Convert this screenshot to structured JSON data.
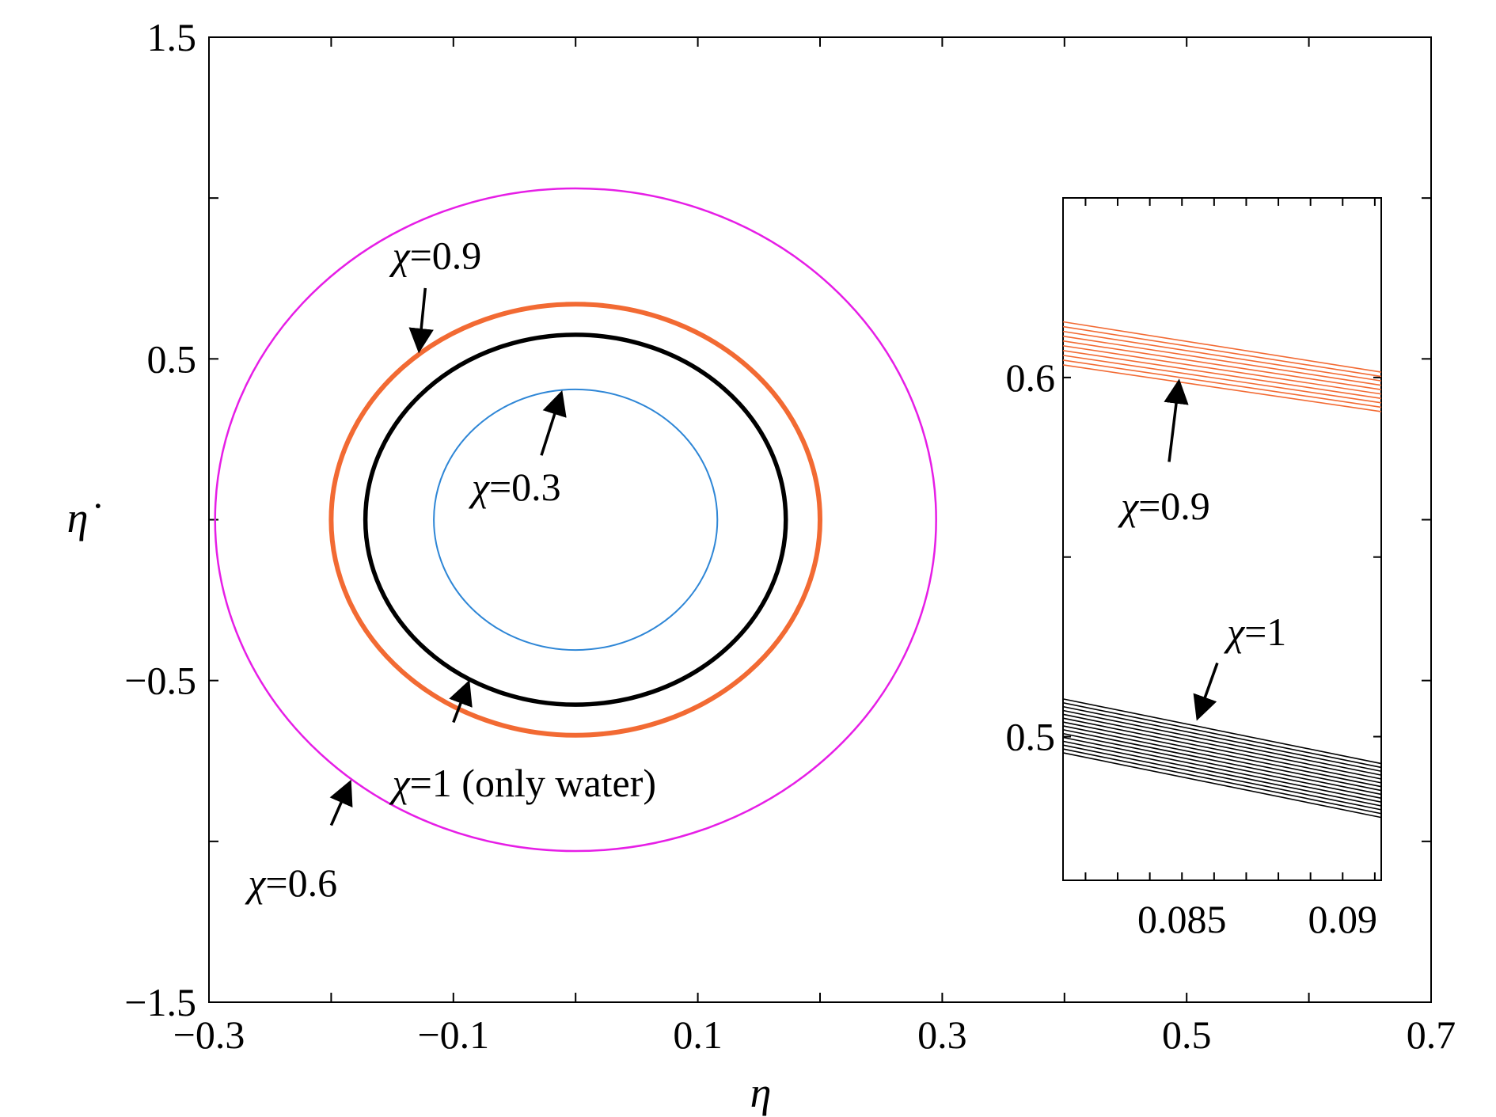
{
  "chart_data": [
    {
      "type": "line",
      "title": "",
      "xlabel": "η",
      "ylabel": "η̇",
      "xlim": [
        -0.3,
        0.7
      ],
      "ylim": [
        -1.5,
        1.5
      ],
      "x_ticks": [
        -0.3,
        -0.2,
        -0.1,
        0.0,
        0.1,
        0.2,
        0.3,
        0.4,
        0.5,
        0.6,
        0.7
      ],
      "x_tick_labels": [
        "−0.3",
        "−0.1",
        "0.1",
        "0.3",
        "0.5",
        "0.7"
      ],
      "x_tick_label_values": [
        -0.3,
        -0.1,
        0.1,
        0.3,
        0.5,
        0.7
      ],
      "y_ticks": [
        -1.5,
        -1.0,
        -0.5,
        0.0,
        0.5,
        1.0,
        1.5
      ],
      "y_tick_labels": [
        "−1.5",
        "−0.5",
        "0.5",
        "1.5"
      ],
      "y_tick_label_values": [
        -1.5,
        -0.5,
        0.5,
        1.5
      ],
      "grid": false,
      "series": [
        {
          "label": "χ=0.6",
          "color": "#e61ee6",
          "center": [
            0.0,
            0.0
          ],
          "radius_x": 0.295,
          "radius_y": 1.03
        },
        {
          "label": "χ=0.9",
          "color": "#f26a33",
          "center": [
            0.0,
            0.0
          ],
          "radius_x": 0.2,
          "radius_y": 0.67
        },
        {
          "label": "χ=1",
          "color": "#000000",
          "center": [
            0.0,
            0.0
          ],
          "radius_x": 0.172,
          "radius_y": 0.575
        },
        {
          "label": "χ=0.3",
          "color": "#2e86d6",
          "center": [
            0.0,
            0.0
          ],
          "radius_x": 0.116,
          "radius_y": 0.405
        }
      ],
      "annotations": [
        {
          "prefix": "χ",
          "text": "=0.9",
          "tip": [
            -0.128,
            0.53
          ],
          "tail": [
            -0.123,
            0.72
          ],
          "label_at": [
            -0.15,
            0.78
          ]
        },
        {
          "prefix": "χ",
          "text": "=0.3",
          "tip": [
            -0.012,
            0.39
          ],
          "tail": [
            -0.028,
            0.2
          ],
          "label_at": [
            -0.085,
            0.06
          ]
        },
        {
          "prefix": "χ",
          "text": "=1 (only water)",
          "tip": [
            -0.088,
            -0.51
          ],
          "tail": [
            -0.1,
            -0.63
          ],
          "label_at": [
            -0.15,
            -0.86
          ]
        },
        {
          "prefix": "χ",
          "text": "=0.6",
          "tip": [
            -0.185,
            -0.82
          ],
          "tail": [
            -0.2,
            -0.95
          ],
          "label_at": [
            -0.268,
            -1.17
          ]
        }
      ]
    },
    {
      "type": "line",
      "title": "",
      "xlabel": "",
      "ylabel": "",
      "xlim": [
        0.0813,
        0.0912
      ],
      "ylim": [
        0.46,
        0.65
      ],
      "x_ticks": [
        0.082,
        0.083,
        0.084,
        0.085,
        0.086,
        0.087,
        0.088,
        0.089,
        0.09,
        0.091
      ],
      "x_tick_labels": [
        "0.085",
        "0.09"
      ],
      "x_tick_label_values": [
        0.085,
        0.09
      ],
      "y_ticks": [
        0.5,
        0.6
      ],
      "y_minor_ticks": [
        0.55
      ],
      "y_tick_labels": [
        "0.5",
        "0.6"
      ],
      "y_tick_label_values": [
        0.5,
        0.6
      ],
      "grid": false,
      "series": [
        {
          "label": "χ=0.9",
          "color": "#f26a33",
          "x": [
            0.0813,
            0.0912
          ],
          "band_start": [
            0.6035,
            0.6155
          ],
          "band_end": [
            0.5905,
            0.6015
          ],
          "count": 10
        },
        {
          "label": "χ=1",
          "color": "#000000",
          "x": [
            0.0813,
            0.0912
          ],
          "band_start": [
            0.4955,
            0.5105
          ],
          "band_end": [
            0.4775,
            0.4925
          ],
          "count": 15
        }
      ],
      "annotations": [
        {
          "prefix": "χ",
          "text": "=0.9",
          "tip": [
            0.0849,
            0.5985
          ],
          "tail": [
            0.0846,
            0.5765
          ],
          "label_at": [
            0.0831,
            0.5605
          ]
        },
        {
          "prefix": "χ",
          "text": "=1",
          "tip": [
            0.0855,
            0.5055
          ],
          "tail": [
            0.0861,
            0.5205
          ],
          "label_at": [
            0.0864,
            0.5255
          ]
        }
      ]
    }
  ]
}
